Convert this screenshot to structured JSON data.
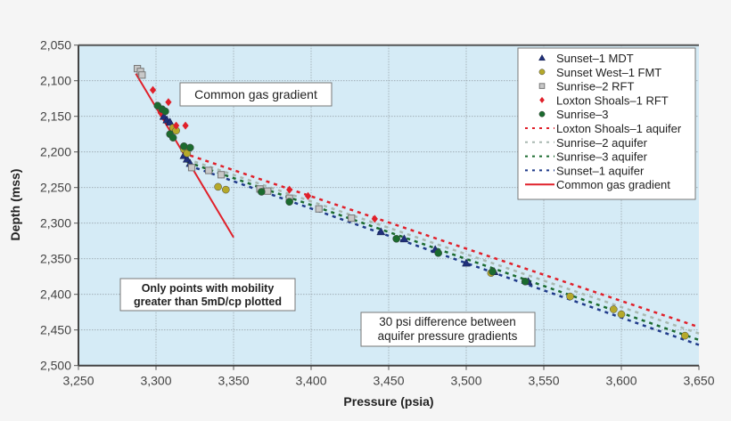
{
  "chart_data": {
    "type": "scatter",
    "xlabel": "Pressure (psia)",
    "ylabel": "Depth (mss)",
    "xlim": [
      3250,
      3650
    ],
    "ylim": [
      2050,
      2500
    ],
    "y_inverted": true,
    "grid": true,
    "legend_placement": "top-right",
    "plot_background": "#d5ebf6",
    "xticks": [
      "3,250",
      "3,300",
      "3,350",
      "3,400",
      "3,450",
      "3,500",
      "3,550",
      "3,600",
      "3,650"
    ],
    "xtick_values": [
      3250,
      3300,
      3350,
      3400,
      3450,
      3500,
      3550,
      3600,
      3650
    ],
    "yticks": [
      "2,050",
      "2,100",
      "2,150",
      "2,200",
      "2,250",
      "2,300",
      "2,350",
      "2,400",
      "2,450",
      "2,500"
    ],
    "ytick_values": [
      2050,
      2100,
      2150,
      2200,
      2250,
      2300,
      2350,
      2400,
      2450,
      2500
    ],
    "series": [
      {
        "name": "Sunset–1 MDT",
        "marker": "triangle",
        "color": "#1f2f7a",
        "points": [
          [
            3305,
            2150
          ],
          [
            3307,
            2155
          ],
          [
            3309,
            2158
          ],
          [
            3318,
            2205
          ],
          [
            3320,
            2210
          ],
          [
            3322,
            2216
          ],
          [
            3445,
            2312
          ],
          [
            3460,
            2322
          ],
          [
            3480,
            2337
          ],
          [
            3500,
            2356
          ],
          [
            3518,
            2368
          ],
          [
            3540,
            2382
          ]
        ]
      },
      {
        "name": "Sunset West–1 FMT",
        "marker": "circle",
        "color": "#b5a92a",
        "points": [
          [
            3311,
            2166
          ],
          [
            3313,
            2170
          ],
          [
            3318,
            2196
          ],
          [
            3320,
            2202
          ],
          [
            3340,
            2249
          ],
          [
            3345,
            2253
          ],
          [
            3516,
            2370
          ],
          [
            3567,
            2403
          ],
          [
            3595,
            2421
          ],
          [
            3600,
            2428
          ],
          [
            3641,
            2458
          ]
        ]
      },
      {
        "name": "Sunrise–2 RFT",
        "marker": "square",
        "color": "#a8a8a8",
        "points": [
          [
            3288,
            2083
          ],
          [
            3290,
            2087
          ],
          [
            3291,
            2092
          ],
          [
            3323,
            2222
          ],
          [
            3334,
            2226
          ],
          [
            3342,
            2232
          ],
          [
            3367,
            2252
          ],
          [
            3372,
            2255
          ],
          [
            3386,
            2265
          ],
          [
            3405,
            2280
          ],
          [
            3426,
            2293
          ]
        ]
      },
      {
        "name": "Loxton Shoals–1 RFT",
        "marker": "diamond",
        "color": "#e0202a",
        "points": [
          [
            3298,
            2113
          ],
          [
            3308,
            2130
          ],
          [
            3313,
            2163
          ],
          [
            3319,
            2163
          ],
          [
            3303,
            2145
          ],
          [
            3386,
            2253
          ],
          [
            3398,
            2262
          ],
          [
            3441,
            2294
          ]
        ]
      },
      {
        "name": "Sunrise–3",
        "marker": "circle",
        "color": "#1b6b2f",
        "points": [
          [
            3301,
            2135
          ],
          [
            3304,
            2140
          ],
          [
            3306,
            2143
          ],
          [
            3309,
            2175
          ],
          [
            3311,
            2180
          ],
          [
            3318,
            2192
          ],
          [
            3322,
            2194
          ],
          [
            3368,
            2256
          ],
          [
            3386,
            2270
          ],
          [
            3455,
            2322
          ],
          [
            3482,
            2342
          ],
          [
            3517,
            2368
          ],
          [
            3538,
            2382
          ]
        ]
      }
    ],
    "lines": [
      {
        "name": "Loxton Shoals–1 aquifer",
        "style": "dashed",
        "color": "#e0202a",
        "points": [
          [
            3322,
            2205
          ],
          [
            3650,
            2446
          ]
        ]
      },
      {
        "name": "Sunrise–2 aquifer",
        "style": "dashed",
        "color": "#a8b8b0",
        "points": [
          [
            3320,
            2210
          ],
          [
            3650,
            2455
          ]
        ]
      },
      {
        "name": "Sunrise–3 aquifer",
        "style": "dashed",
        "color": "#1b6b2f",
        "points": [
          [
            3320,
            2214
          ],
          [
            3650,
            2464
          ]
        ]
      },
      {
        "name": "Sunset–1 aquifer",
        "style": "dashed",
        "color": "#1f3a8a",
        "points": [
          [
            3321,
            2219
          ],
          [
            3650,
            2471
          ]
        ]
      },
      {
        "name": "Common gas gradient",
        "style": "solid",
        "color": "#e0202a",
        "points": [
          [
            3287,
            2090
          ],
          [
            3350,
            2320
          ]
        ]
      }
    ],
    "annotations": [
      {
        "text": "Common gas gradient",
        "x": 3300,
        "y": 2120,
        "bold": false
      },
      {
        "text": [
          "Only points with mobility",
          "greater than 5mD/cp plotted"
        ],
        "x": 3330,
        "y": 2400,
        "bold": true
      },
      {
        "text": [
          "30 psi difference between",
          "aquifer pressure gradients"
        ],
        "x": 3480,
        "y": 2455,
        "bold": false
      }
    ]
  }
}
